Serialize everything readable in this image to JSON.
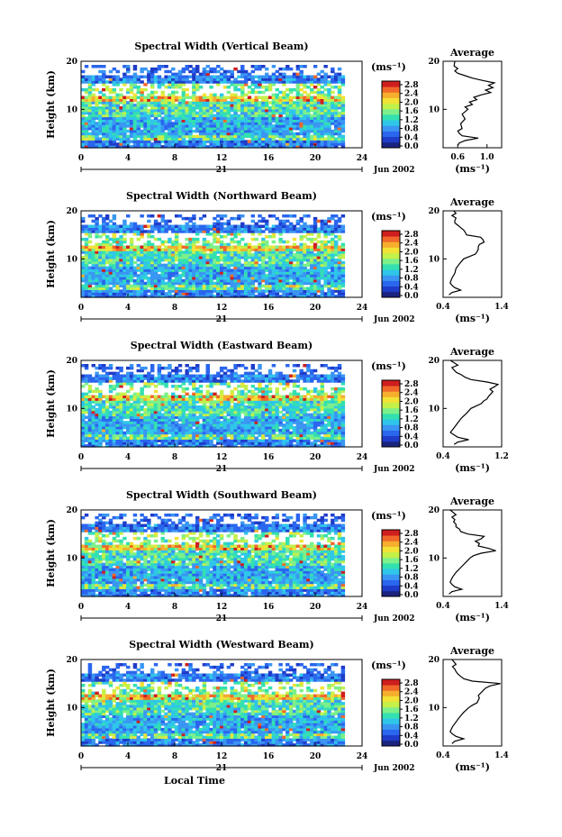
{
  "colormap": [
    "#1a237e",
    "#1e3cc8",
    "#2a66ee",
    "#3a96f2",
    "#2fc6ea",
    "#33e0b0",
    "#7cf08a",
    "#c4f04a",
    "#f2e236",
    "#f6ae2e",
    "#f0682a",
    "#cf1e1e"
  ],
  "chart_data": [
    {
      "type": "heatmap",
      "title": "Spectral Width (Vertical Beam)",
      "ylabel": "Height (km)",
      "ylim": [
        2,
        20
      ],
      "yticks": [
        10,
        20
      ],
      "xlim": [
        0,
        24
      ],
      "xticks": [
        0,
        4,
        8,
        12,
        16,
        20,
        24
      ],
      "date_label": "21",
      "month_label": "Jun 2002",
      "unit": "(ms⁻¹)",
      "colorbar_ticks": [
        "0.0",
        "0.4",
        "0.8",
        "1.2",
        "1.6",
        "2.0",
        "2.4",
        "2.8"
      ],
      "average": {
        "title": "Average",
        "xlim": [
          0.4,
          1.2
        ],
        "xticks": [
          "0.6",
          "1.0"
        ],
        "xlabel": "(ms⁻¹)",
        "profile": [
          [
            2.5,
            0.6
          ],
          [
            3,
            0.62
          ],
          [
            3.5,
            0.7
          ],
          [
            4,
            0.88
          ],
          [
            4.5,
            0.66
          ],
          [
            5,
            0.62
          ],
          [
            5.5,
            0.6
          ],
          [
            6,
            0.66
          ],
          [
            7,
            0.64
          ],
          [
            8,
            0.7
          ],
          [
            9,
            0.66
          ],
          [
            10,
            0.74
          ],
          [
            10.5,
            0.7
          ],
          [
            11,
            0.8
          ],
          [
            11.5,
            0.76
          ],
          [
            12,
            0.86
          ],
          [
            12.5,
            0.82
          ],
          [
            13,
            0.92
          ],
          [
            13.5,
            1.05
          ],
          [
            14,
            0.98
          ],
          [
            14.5,
            1.08
          ],
          [
            15,
            1.02
          ],
          [
            15.5,
            1.1
          ],
          [
            16,
            0.94
          ],
          [
            16.5,
            0.8
          ],
          [
            17,
            0.7
          ],
          [
            17.5,
            0.6
          ],
          [
            18,
            0.56
          ],
          [
            18.5,
            0.6
          ],
          [
            19,
            0.55
          ],
          [
            20,
            0.56
          ]
        ]
      }
    },
    {
      "type": "heatmap",
      "title": "Spectral Width (Northward Beam)",
      "ylabel": "Height (km)",
      "ylim": [
        2,
        20
      ],
      "yticks": [
        10,
        20
      ],
      "xlim": [
        0,
        24
      ],
      "xticks": [
        0,
        4,
        8,
        12,
        16,
        20,
        24
      ],
      "date_label": "21",
      "month_label": "Jun 2002",
      "unit": "(ms⁻¹)",
      "colorbar_ticks": [
        "0.0",
        "0.4",
        "0.8",
        "1.2",
        "1.6",
        "2.0",
        "2.4",
        "2.8"
      ],
      "average": {
        "title": "Average",
        "xlim": [
          0.4,
          1.4
        ],
        "xticks": [
          "0.4",
          "1.4"
        ],
        "xlabel": "(ms⁻¹)",
        "profile": [
          [
            2.5,
            0.5
          ],
          [
            3,
            0.55
          ],
          [
            3.5,
            0.7
          ],
          [
            4,
            0.6
          ],
          [
            4.5,
            0.55
          ],
          [
            5,
            0.52
          ],
          [
            6,
            0.55
          ],
          [
            7,
            0.6
          ],
          [
            8,
            0.62
          ],
          [
            9,
            0.68
          ],
          [
            10,
            0.75
          ],
          [
            10.5,
            0.85
          ],
          [
            11,
            0.95
          ],
          [
            11.5,
            0.98
          ],
          [
            12,
            1.0
          ],
          [
            12.5,
            1.0
          ],
          [
            13,
            1.02
          ],
          [
            13.5,
            1.1
          ],
          [
            14,
            1.08
          ],
          [
            14.5,
            1.04
          ],
          [
            15,
            0.8
          ],
          [
            15.5,
            0.78
          ],
          [
            16,
            0.75
          ],
          [
            16.5,
            0.7
          ],
          [
            17,
            0.65
          ],
          [
            17.5,
            0.6
          ],
          [
            18,
            0.6
          ],
          [
            18.5,
            0.62
          ],
          [
            19,
            0.55
          ],
          [
            19.5,
            0.62
          ],
          [
            20,
            0.58
          ]
        ]
      }
    },
    {
      "type": "heatmap",
      "title": "Spectral Width (Eastward Beam)",
      "ylabel": "Height (km)",
      "ylim": [
        2,
        20
      ],
      "yticks": [
        10,
        20
      ],
      "xlim": [
        0,
        24
      ],
      "xticks": [
        0,
        4,
        8,
        12,
        16,
        20,
        24
      ],
      "date_label": "21",
      "month_label": "Jun 2002",
      "unit": "(ms⁻¹)",
      "colorbar_ticks": [
        "0.0",
        "0.4",
        "0.8",
        "1.2",
        "1.6",
        "2.0",
        "2.4",
        "2.8"
      ],
      "average": {
        "title": "Average",
        "xlim": [
          0.4,
          1.2
        ],
        "xticks": [
          "0.4",
          "1.2"
        ],
        "xlabel": "(ms⁻¹)",
        "profile": [
          [
            2.5,
            0.55
          ],
          [
            3,
            0.6
          ],
          [
            3.5,
            0.75
          ],
          [
            4,
            0.6
          ],
          [
            4.5,
            0.55
          ],
          [
            5,
            0.5
          ],
          [
            6,
            0.55
          ],
          [
            7,
            0.6
          ],
          [
            8,
            0.65
          ],
          [
            9,
            0.72
          ],
          [
            10,
            0.78
          ],
          [
            10.5,
            0.85
          ],
          [
            11,
            0.92
          ],
          [
            11.5,
            0.95
          ],
          [
            12,
            1.0
          ],
          [
            12.5,
            1.02
          ],
          [
            13,
            1.05
          ],
          [
            13.5,
            1.08
          ],
          [
            14,
            1.04
          ],
          [
            14.5,
            1.1
          ],
          [
            15,
            1.15
          ],
          [
            15.5,
            1.0
          ],
          [
            16,
            0.78
          ],
          [
            16.5,
            0.7
          ],
          [
            17,
            0.65
          ],
          [
            17.5,
            0.58
          ],
          [
            18,
            0.55
          ],
          [
            18.5,
            0.52
          ],
          [
            19,
            0.6
          ],
          [
            20,
            0.5
          ]
        ]
      }
    },
    {
      "type": "heatmap",
      "title": "Spectral Width (Southward Beam)",
      "ylabel": "Height (km)",
      "ylim": [
        2,
        20
      ],
      "yticks": [
        10,
        20
      ],
      "xlim": [
        0,
        24
      ],
      "xticks": [
        0,
        4,
        8,
        12,
        16,
        20,
        24
      ],
      "date_label": "21",
      "month_label": "Jun 2002",
      "unit": "(ms⁻¹)",
      "colorbar_ticks": [
        "0.0",
        "0.4",
        "0.8",
        "1.2",
        "1.6",
        "2.0",
        "2.4",
        "2.8"
      ],
      "average": {
        "title": "Average",
        "xlim": [
          0.4,
          1.4
        ],
        "xticks": [
          "0.4",
          "1.4"
        ],
        "xlabel": "(ms⁻¹)",
        "profile": [
          [
            2.5,
            0.5
          ],
          [
            3,
            0.55
          ],
          [
            3.5,
            0.72
          ],
          [
            4,
            0.6
          ],
          [
            4.5,
            0.55
          ],
          [
            5,
            0.52
          ],
          [
            6,
            0.56
          ],
          [
            7,
            0.62
          ],
          [
            8,
            0.7
          ],
          [
            9,
            0.78
          ],
          [
            10,
            0.86
          ],
          [
            10.5,
            0.92
          ],
          [
            11,
            1.05
          ],
          [
            11.5,
            1.3
          ],
          [
            12,
            1.18
          ],
          [
            12.5,
            1.0
          ],
          [
            13,
            1.02
          ],
          [
            13.5,
            0.95
          ],
          [
            14,
            1.05
          ],
          [
            14.5,
            1.1
          ],
          [
            15,
            0.82
          ],
          [
            15.5,
            0.7
          ],
          [
            16,
            0.68
          ],
          [
            16.5,
            0.62
          ],
          [
            17,
            0.62
          ],
          [
            17.5,
            0.58
          ],
          [
            18,
            0.6
          ],
          [
            18.5,
            0.55
          ],
          [
            19,
            0.62
          ],
          [
            20,
            0.52
          ]
        ]
      }
    },
    {
      "type": "heatmap",
      "title": "Spectral Width (Westward Beam)",
      "ylabel": "Height (km)",
      "ylim": [
        2,
        20
      ],
      "yticks": [
        10,
        20
      ],
      "xlim": [
        0,
        24
      ],
      "xticks": [
        0,
        4,
        8,
        12,
        16,
        20,
        24
      ],
      "date_label": "21",
      "month_label": "Jun 2002",
      "xlabel": "Local Time",
      "unit": "(ms⁻¹)",
      "colorbar_ticks": [
        "0.0",
        "0.4",
        "0.8",
        "1.2",
        "1.6",
        "2.0",
        "2.4",
        "2.8"
      ],
      "average": {
        "title": "Average",
        "xlim": [
          0.4,
          1.4
        ],
        "xticks": [
          "0.4",
          "1.4"
        ],
        "xlabel": "(ms⁻¹)",
        "profile": [
          [
            2.5,
            0.55
          ],
          [
            3,
            0.6
          ],
          [
            3.5,
            0.75
          ],
          [
            4,
            0.62
          ],
          [
            4.5,
            0.56
          ],
          [
            5,
            0.52
          ],
          [
            6,
            0.56
          ],
          [
            7,
            0.62
          ],
          [
            8,
            0.68
          ],
          [
            9,
            0.75
          ],
          [
            10,
            0.84
          ],
          [
            10.5,
            0.9
          ],
          [
            11,
            0.98
          ],
          [
            11.5,
            1.0
          ],
          [
            12,
            1.02
          ],
          [
            12.5,
            1.0
          ],
          [
            13,
            1.04
          ],
          [
            13.5,
            1.08
          ],
          [
            14,
            1.12
          ],
          [
            14.5,
            1.2
          ],
          [
            15,
            1.38
          ],
          [
            15.5,
            0.9
          ],
          [
            16,
            0.75
          ],
          [
            16.5,
            0.7
          ],
          [
            17,
            0.65
          ],
          [
            17.5,
            0.62
          ],
          [
            18,
            0.6
          ],
          [
            18.5,
            0.56
          ],
          [
            19,
            0.62
          ],
          [
            20,
            0.55
          ]
        ]
      }
    }
  ]
}
